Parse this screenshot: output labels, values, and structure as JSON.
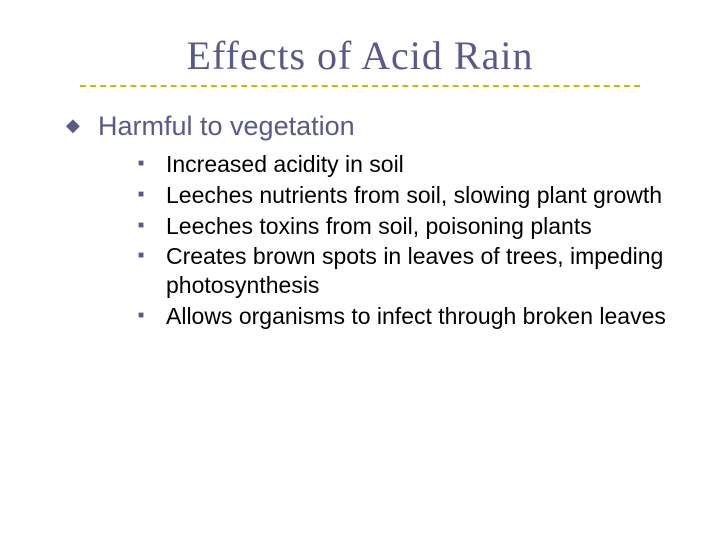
{
  "slide": {
    "title": "Effects of Acid Rain",
    "title_color": "#5a5a8a",
    "title_fontsize": 40,
    "underline_color": "#c0c000",
    "background_color": "#ffffff",
    "body_fontsize_l1": 27,
    "body_fontsize_l2": 23,
    "bullet_color": "#5a5a8a",
    "level1": [
      {
        "text": "Harmful to vegetation",
        "level2": [
          "Increased acidity in soil",
          "Leeches nutrients from soil, slowing plant growth",
          "Leeches toxins from soil, poisoning plants",
          "Creates brown spots in leaves of trees, impeding photosynthesis",
          "Allows organisms to infect through broken leaves"
        ]
      }
    ]
  }
}
